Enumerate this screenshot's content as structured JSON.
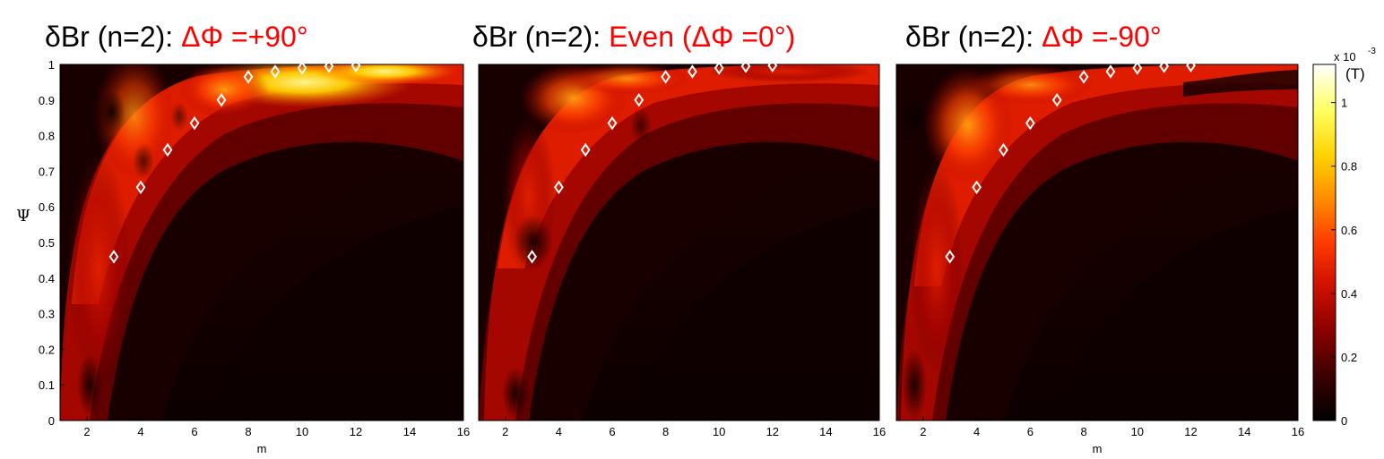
{
  "colors": {
    "background": "#ffffff",
    "title_main": "#000000",
    "title_accent": "#ff0000",
    "marker": "#ffffff",
    "colormap": [
      "#000000",
      "#3a0000",
      "#8a0000",
      "#d01000",
      "#ff3a00",
      "#ff8a00",
      "#ffd000",
      "#ffff60",
      "#ffffff"
    ]
  },
  "colorbar": {
    "exponent_label": "x 10",
    "exponent": "-3",
    "unit": "(T)",
    "ticks": [
      "0",
      "0.2",
      "0.4",
      "0.6",
      "0.8",
      "1"
    ],
    "tick_values": [
      0,
      0.2,
      0.4,
      0.6,
      0.8,
      1.0
    ],
    "range": [
      0,
      1.12
    ]
  },
  "chart_data": [
    {
      "type": "heatmap",
      "title": "δBr (n=2): ",
      "title_accent": "ΔΦ =+90°",
      "xlabel": "m",
      "ylabel": "Ψ",
      "xlim": [
        1,
        16
      ],
      "ylim": [
        0,
        1
      ],
      "x_ticks": [
        "2",
        "4",
        "6",
        "8",
        "10",
        "12",
        "14",
        "16"
      ],
      "y_ticks": [
        "0",
        "0.1",
        "0.2",
        "0.3",
        "0.4",
        "0.5",
        "0.6",
        "0.7",
        "0.8",
        "0.9",
        "1"
      ],
      "resonant_markers": {
        "m": [
          3,
          4,
          5,
          6,
          7,
          8,
          9,
          10,
          11,
          12
        ],
        "psi": [
          0.46,
          0.655,
          0.76,
          0.835,
          0.9,
          0.965,
          0.98,
          0.99,
          0.995,
          0.997
        ]
      }
    },
    {
      "type": "heatmap",
      "title": "δBr (n=2): ",
      "title_accent": "Even (ΔΦ =0°)",
      "xlabel": "",
      "ylabel": "",
      "xlim": [
        1,
        16
      ],
      "ylim": [
        0,
        1
      ],
      "x_ticks": [
        "2",
        "4",
        "6",
        "8",
        "10",
        "12",
        "14",
        "16"
      ],
      "y_ticks": [],
      "resonant_markers": {
        "m": [
          3,
          4,
          5,
          6,
          7,
          8,
          9,
          10,
          11,
          12
        ],
        "psi": [
          0.46,
          0.655,
          0.76,
          0.835,
          0.9,
          0.965,
          0.98,
          0.99,
          0.995,
          0.997
        ]
      }
    },
    {
      "type": "heatmap",
      "title": "δBr (n=2): ",
      "title_accent": "ΔΦ =-90°",
      "xlabel": "m",
      "ylabel": "",
      "xlim": [
        1,
        16
      ],
      "ylim": [
        0,
        1
      ],
      "x_ticks": [
        "2",
        "4",
        "6",
        "8",
        "10",
        "12",
        "14",
        "16"
      ],
      "y_ticks": [],
      "resonant_markers": {
        "m": [
          3,
          4,
          5,
          6,
          7,
          8,
          9,
          10,
          11,
          12
        ],
        "psi": [
          0.46,
          0.655,
          0.76,
          0.835,
          0.9,
          0.965,
          0.98,
          0.99,
          0.995,
          0.997
        ]
      }
    }
  ]
}
